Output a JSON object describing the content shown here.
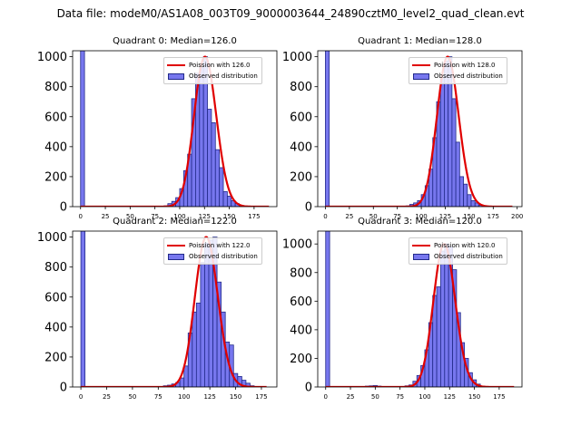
{
  "suptitle": "Data file: modeM0/AS1A08_003T09_9000003644_24890cztM0_level2_quad_clean.evt",
  "colors": {
    "bar_fill": "#7777ee",
    "bar_edge": "#222a8a",
    "fit_line": "#e00000"
  },
  "chart_data": [
    {
      "type": "bar",
      "title": "Quadrant 0: Median=126.0",
      "xlim": [
        -8,
        198
      ],
      "ylim": [
        0,
        1040
      ],
      "xticks": [
        0,
        25,
        50,
        75,
        100,
        125,
        150,
        175
      ],
      "yticks": [
        0,
        200,
        400,
        600,
        800,
        1000
      ],
      "grid": false,
      "legend_position": "top-right",
      "bin_width": 4,
      "series": [
        {
          "name": "Observed distribution",
          "kind": "histogram",
          "x": [
            0,
            84,
            88,
            92,
            96,
            100,
            104,
            108,
            112,
            116,
            120,
            124,
            128,
            132,
            136,
            140,
            144,
            148,
            152,
            156,
            160,
            164
          ],
          "values": [
            1040,
            5,
            20,
            35,
            60,
            120,
            240,
            350,
            720,
            890,
            930,
            1000,
            650,
            560,
            380,
            260,
            100,
            70,
            40,
            20,
            8,
            3
          ]
        },
        {
          "name": "Poission with 126.0",
          "kind": "line",
          "mean": 126.0,
          "peak": 1000,
          "x_range": [
            0,
            190
          ]
        }
      ]
    },
    {
      "type": "bar",
      "title": "Quadrant 1: Median=128.0",
      "xlim": [
        -8,
        205
      ],
      "ylim": [
        0,
        1040
      ],
      "xticks": [
        0,
        25,
        50,
        75,
        100,
        125,
        150,
        175,
        200
      ],
      "yticks": [
        0,
        200,
        400,
        600,
        800,
        1000
      ],
      "grid": false,
      "legend_position": "top-right",
      "bin_width": 4,
      "series": [
        {
          "name": "Observed distribution",
          "kind": "histogram",
          "x": [
            0,
            84,
            88,
            92,
            96,
            100,
            104,
            108,
            112,
            116,
            120,
            124,
            128,
            132,
            136,
            140,
            144,
            148,
            152,
            156,
            160,
            164
          ],
          "values": [
            1040,
            5,
            15,
            25,
            40,
            80,
            140,
            250,
            460,
            700,
            860,
            970,
            1000,
            720,
            430,
            200,
            150,
            80,
            40,
            25,
            10,
            4
          ]
        },
        {
          "name": "Poission with 128.0",
          "kind": "line",
          "mean": 128.0,
          "peak": 1000,
          "x_range": [
            0,
            195
          ]
        }
      ]
    },
    {
      "type": "bar",
      "title": "Quadrant 2: Median=122.0",
      "xlim": [
        -8,
        190
      ],
      "ylim": [
        0,
        1040
      ],
      "xticks": [
        0,
        25,
        50,
        75,
        100,
        125,
        150,
        175
      ],
      "yticks": [
        0,
        200,
        400,
        600,
        800,
        1000
      ],
      "grid": false,
      "legend_position": "top-right",
      "bin_width": 4,
      "series": [
        {
          "name": "Observed distribution",
          "kind": "histogram",
          "x": [
            0,
            76,
            80,
            84,
            88,
            92,
            96,
            100,
            104,
            108,
            112,
            116,
            120,
            124,
            128,
            132,
            136,
            140,
            144,
            148,
            152,
            156,
            160,
            164
          ],
          "values": [
            1040,
            3,
            8,
            12,
            20,
            30,
            60,
            140,
            360,
            500,
            560,
            830,
            960,
            980,
            1000,
            700,
            500,
            300,
            280,
            90,
            70,
            45,
            25,
            8
          ]
        },
        {
          "name": "Poission with 122.0",
          "kind": "line",
          "mean": 122.0,
          "peak": 1000,
          "x_range": [
            0,
            180
          ]
        }
      ]
    },
    {
      "type": "bar",
      "title": "Quadrant 3: Median=120.0",
      "xlim": [
        -8,
        198
      ],
      "ylim": [
        0,
        1090
      ],
      "xticks": [
        0,
        25,
        50,
        75,
        100,
        125,
        150,
        175
      ],
      "yticks": [
        0,
        200,
        400,
        600,
        800,
        1000
      ],
      "grid": false,
      "legend_position": "top-right",
      "bin_width": 4,
      "series": [
        {
          "name": "Observed distribution",
          "kind": "histogram",
          "x": [
            0,
            40,
            44,
            48,
            52,
            76,
            80,
            84,
            88,
            92,
            96,
            100,
            104,
            108,
            112,
            116,
            120,
            124,
            128,
            132,
            136,
            140,
            144,
            148,
            152,
            156
          ],
          "values": [
            1090,
            6,
            8,
            10,
            6,
            4,
            8,
            14,
            40,
            80,
            150,
            260,
            450,
            640,
            700,
            950,
            1000,
            980,
            820,
            520,
            310,
            200,
            100,
            50,
            20,
            6
          ]
        },
        {
          "name": "Poission with 120.0",
          "kind": "line",
          "mean": 120.0,
          "peak": 1000,
          "x_range": [
            0,
            190
          ]
        }
      ]
    }
  ]
}
